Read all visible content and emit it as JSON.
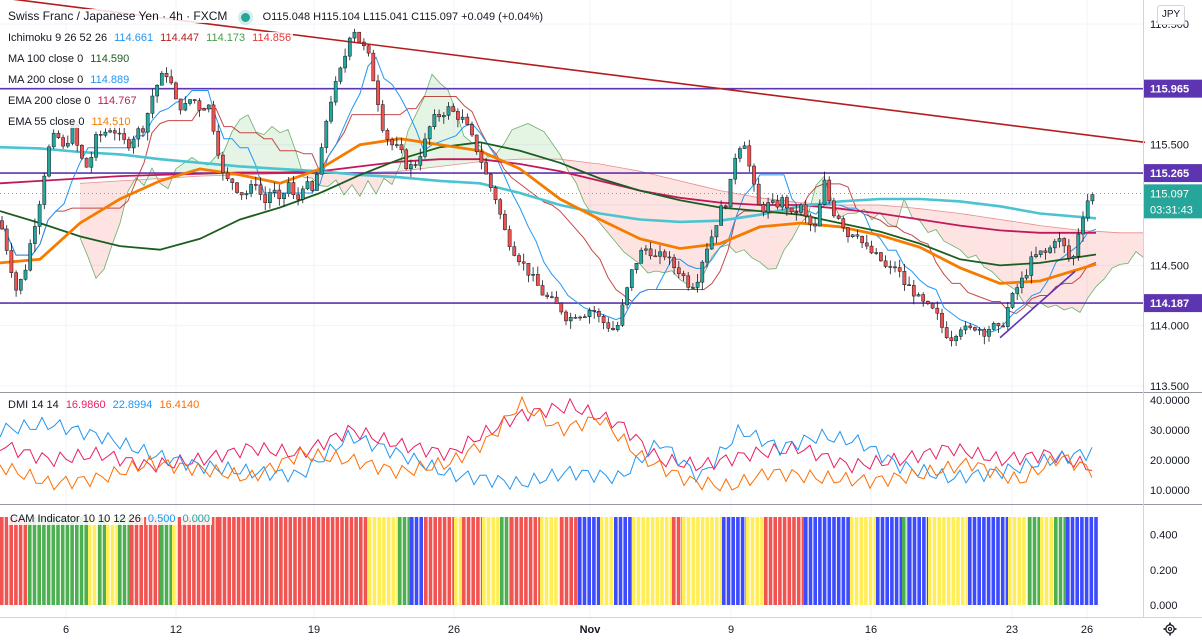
{
  "header": {
    "symbol": "Swiss Franc / Japanese Yen · 4h · FXCM",
    "ohlc": "O115.048 H115.104 L115.041 C115.097 +0.049 (+0.04%)",
    "currency": "JPY"
  },
  "indicators": [
    {
      "name": "Ichimoku 9 26 52 26",
      "values": [
        "114.661",
        "114.447",
        "114.173",
        "114.856"
      ],
      "colors": [
        "#2196f3",
        "#b71c1c",
        "#43a047",
        "#e53935"
      ]
    },
    {
      "name": "MA 100 close 0",
      "values": [
        "114.590"
      ],
      "colors": [
        "#1b5e20"
      ]
    },
    {
      "name": "MA 200 close 0",
      "values": [
        "114.889"
      ],
      "colors": [
        "#2196f3"
      ]
    },
    {
      "name": "EMA 200 close 0",
      "values": [
        "114.767"
      ],
      "colors": [
        "#c2185b"
      ]
    },
    {
      "name": "EMA 55 close 0",
      "values": [
        "114.510"
      ],
      "colors": [
        "#f57c00"
      ]
    }
  ],
  "price_axis": {
    "ticks": [
      "116.500",
      "116.000",
      "115.500",
      "115.000",
      "114.500",
      "114.000",
      "113.500"
    ],
    "ymin": 113.45,
    "ymax": 116.7,
    "hlines": [
      {
        "value": 115.965,
        "label": "115.965"
      },
      {
        "value": 115.265,
        "label": "115.265"
      },
      {
        "value": 114.187,
        "label": "114.187"
      }
    ],
    "last_price": "115.097",
    "countdown": "03:31:43"
  },
  "x_axis": {
    "labels": [
      "6",
      "12",
      "19",
      "26",
      "Nov",
      "9",
      "16",
      "23",
      "26"
    ]
  },
  "dmi": {
    "label": "DMI 14 14",
    "values": [
      "16.9860",
      "22.8994",
      "16.4140"
    ],
    "colors": [
      "#e91e63",
      "#2196f3",
      "#ff6d00"
    ],
    "ticks": [
      "40.0000",
      "30.0000",
      "20.0000",
      "10.0000"
    ]
  },
  "cam": {
    "label": "CAM Indicator 10 10 12 26",
    "values": [
      "0.500",
      "0.000"
    ],
    "colors": [
      "#2196f3",
      "#26a69a"
    ],
    "ticks": [
      "0.400",
      "0.200",
      "0.000"
    ],
    "palette": {
      "red": "#f05350",
      "green": "#4caf50",
      "yellow": "#ffee58",
      "blue": "#3d4bff"
    }
  },
  "chart_data": {
    "type": "candlestick",
    "title": "Swiss Franc / Japanese Yen · 4h · FXCM",
    "ylim": [
      113.45,
      116.7
    ],
    "close_path": [
      [
        0,
        114.87
      ],
      [
        8,
        114.6
      ],
      [
        16,
        114.3
      ],
      [
        24,
        114.42
      ],
      [
        32,
        114.75
      ],
      [
        40,
        115.05
      ],
      [
        48,
        115.45
      ],
      [
        56,
        115.6
      ],
      [
        64,
        115.45
      ],
      [
        72,
        115.65
      ],
      [
        80,
        115.4
      ],
      [
        88,
        115.3
      ],
      [
        96,
        115.55
      ],
      [
        104,
        115.6
      ],
      [
        112,
        115.65
      ],
      [
        120,
        115.55
      ],
      [
        128,
        115.5
      ],
      [
        136,
        115.6
      ],
      [
        144,
        115.65
      ],
      [
        152,
        115.9
      ],
      [
        160,
        116.05
      ],
      [
        168,
        116.1
      ],
      [
        176,
        115.85
      ],
      [
        184,
        115.8
      ],
      [
        192,
        115.9
      ],
      [
        200,
        115.8
      ],
      [
        208,
        115.85
      ],
      [
        216,
        115.55
      ],
      [
        224,
        115.2
      ],
      [
        232,
        115.2
      ],
      [
        240,
        115.1
      ],
      [
        248,
        115.1
      ],
      [
        256,
        115.2
      ],
      [
        264,
        115.0
      ],
      [
        272,
        115.15
      ],
      [
        280,
        115.0
      ],
      [
        288,
        115.2
      ],
      [
        296,
        115.0
      ],
      [
        304,
        115.2
      ],
      [
        312,
        115.1
      ],
      [
        320,
        115.35
      ],
      [
        328,
        115.8
      ],
      [
        336,
        116.0
      ],
      [
        344,
        116.2
      ],
      [
        352,
        116.5
      ],
      [
        360,
        116.35
      ],
      [
        368,
        116.25
      ],
      [
        376,
        115.95
      ],
      [
        384,
        115.6
      ],
      [
        392,
        115.5
      ],
      [
        400,
        115.45
      ],
      [
        408,
        115.3
      ],
      [
        416,
        115.35
      ],
      [
        424,
        115.5
      ],
      [
        432,
        115.7
      ],
      [
        440,
        115.75
      ],
      [
        448,
        115.8
      ],
      [
        456,
        115.75
      ],
      [
        464,
        115.7
      ],
      [
        472,
        115.55
      ],
      [
        480,
        115.4
      ],
      [
        488,
        115.2
      ],
      [
        496,
        115.05
      ],
      [
        504,
        114.8
      ],
      [
        512,
        114.65
      ],
      [
        520,
        114.55
      ],
      [
        528,
        114.45
      ],
      [
        536,
        114.35
      ],
      [
        544,
        114.25
      ],
      [
        552,
        114.2
      ],
      [
        560,
        114.15
      ],
      [
        568,
        114.05
      ],
      [
        576,
        114.1
      ],
      [
        584,
        114.1
      ],
      [
        592,
        114.15
      ],
      [
        600,
        114.05
      ],
      [
        608,
        114.0
      ],
      [
        616,
        113.95
      ],
      [
        624,
        114.2
      ],
      [
        632,
        114.45
      ],
      [
        640,
        114.6
      ],
      [
        648,
        114.65
      ],
      [
        656,
        114.55
      ],
      [
        664,
        114.6
      ],
      [
        672,
        114.5
      ],
      [
        680,
        114.45
      ],
      [
        688,
        114.35
      ],
      [
        696,
        114.35
      ],
      [
        704,
        114.6
      ],
      [
        712,
        114.75
      ],
      [
        720,
        114.95
      ],
      [
        728,
        115.05
      ],
      [
        736,
        115.45
      ],
      [
        744,
        115.55
      ],
      [
        752,
        115.2
      ],
      [
        760,
        114.95
      ],
      [
        768,
        115.0
      ],
      [
        776,
        115.0
      ],
      [
        784,
        115.05
      ],
      [
        792,
        114.9
      ],
      [
        800,
        115.0
      ],
      [
        808,
        114.85
      ],
      [
        816,
        114.8
      ],
      [
        824,
        115.2
      ],
      [
        832,
        114.95
      ],
      [
        840,
        114.9
      ],
      [
        848,
        114.75
      ],
      [
        856,
        114.8
      ],
      [
        864,
        114.65
      ],
      [
        872,
        114.6
      ],
      [
        880,
        114.55
      ],
      [
        888,
        114.45
      ],
      [
        896,
        114.5
      ],
      [
        904,
        114.35
      ],
      [
        912,
        114.3
      ],
      [
        920,
        114.2
      ],
      [
        928,
        114.15
      ],
      [
        936,
        114.1
      ],
      [
        944,
        113.95
      ],
      [
        952,
        113.9
      ],
      [
        960,
        114.0
      ],
      [
        968,
        113.95
      ],
      [
        976,
        114.0
      ],
      [
        984,
        113.95
      ],
      [
        992,
        114.0
      ],
      [
        1000,
        113.95
      ],
      [
        1008,
        114.15
      ],
      [
        1016,
        114.3
      ],
      [
        1024,
        114.4
      ],
      [
        1032,
        114.55
      ],
      [
        1040,
        114.6
      ],
      [
        1048,
        114.6
      ],
      [
        1056,
        114.75
      ],
      [
        1064,
        114.65
      ],
      [
        1072,
        114.5
      ],
      [
        1080,
        114.85
      ],
      [
        1088,
        115.05
      ],
      [
        1096,
        115.1
      ]
    ],
    "ema55_path": [
      [
        0,
        114.52
      ],
      [
        40,
        114.55
      ],
      [
        80,
        114.85
      ],
      [
        120,
        115.05
      ],
      [
        160,
        115.2
      ],
      [
        200,
        115.3
      ],
      [
        240,
        115.25
      ],
      [
        280,
        115.18
      ],
      [
        320,
        115.3
      ],
      [
        360,
        115.5
      ],
      [
        400,
        115.55
      ],
      [
        440,
        115.5
      ],
      [
        480,
        115.45
      ],
      [
        520,
        115.3
      ],
      [
        560,
        115.05
      ],
      [
        600,
        114.88
      ],
      [
        640,
        114.72
      ],
      [
        680,
        114.64
      ],
      [
        720,
        114.68
      ],
      [
        760,
        114.82
      ],
      [
        800,
        114.85
      ],
      [
        840,
        114.82
      ],
      [
        880,
        114.75
      ],
      [
        920,
        114.65
      ],
      [
        960,
        114.48
      ],
      [
        1000,
        114.35
      ],
      [
        1040,
        114.37
      ],
      [
        1096,
        114.51
      ]
    ],
    "ma100_path": [
      [
        0,
        114.95
      ],
      [
        40,
        114.85
      ],
      [
        80,
        114.74
      ],
      [
        120,
        114.66
      ],
      [
        160,
        114.63
      ],
      [
        200,
        114.72
      ],
      [
        240,
        114.88
      ],
      [
        280,
        114.98
      ],
      [
        320,
        115.1
      ],
      [
        360,
        115.25
      ],
      [
        400,
        115.38
      ],
      [
        440,
        115.48
      ],
      [
        480,
        115.52
      ],
      [
        520,
        115.45
      ],
      [
        560,
        115.35
      ],
      [
        600,
        115.22
      ],
      [
        640,
        115.12
      ],
      [
        680,
        115.04
      ],
      [
        720,
        114.98
      ],
      [
        760,
        114.95
      ],
      [
        800,
        114.92
      ],
      [
        840,
        114.85
      ],
      [
        880,
        114.78
      ],
      [
        920,
        114.68
      ],
      [
        960,
        114.55
      ],
      [
        1000,
        114.5
      ],
      [
        1040,
        114.52
      ],
      [
        1096,
        114.59
      ]
    ],
    "ma200_path": [
      [
        0,
        115.48
      ],
      [
        40,
        115.47
      ],
      [
        80,
        115.44
      ],
      [
        120,
        115.42
      ],
      [
        160,
        115.38
      ],
      [
        200,
        115.35
      ],
      [
        240,
        115.32
      ],
      [
        280,
        115.3
      ],
      [
        320,
        115.28
      ],
      [
        360,
        115.25
      ],
      [
        400,
        115.23
      ],
      [
        440,
        115.2
      ],
      [
        480,
        115.18
      ],
      [
        520,
        115.1
      ],
      [
        560,
        115.0
      ],
      [
        600,
        114.93
      ],
      [
        640,
        114.88
      ],
      [
        680,
        114.86
      ],
      [
        720,
        114.87
      ],
      [
        760,
        114.92
      ],
      [
        800,
        114.99
      ],
      [
        840,
        115.03
      ],
      [
        880,
        115.05
      ],
      [
        920,
        115.05
      ],
      [
        960,
        115.03
      ],
      [
        1000,
        114.99
      ],
      [
        1040,
        114.93
      ],
      [
        1096,
        114.89
      ]
    ],
    "ema200_path": [
      [
        0,
        115.18
      ],
      [
        40,
        115.2
      ],
      [
        80,
        115.22
      ],
      [
        120,
        115.24
      ],
      [
        160,
        115.25
      ],
      [
        200,
        115.26
      ],
      [
        240,
        115.27
      ],
      [
        280,
        115.27
      ],
      [
        320,
        115.28
      ],
      [
        360,
        115.32
      ],
      [
        400,
        115.36
      ],
      [
        440,
        115.38
      ],
      [
        480,
        115.38
      ],
      [
        520,
        115.34
      ],
      [
        560,
        115.28
      ],
      [
        600,
        115.2
      ],
      [
        640,
        115.12
      ],
      [
        680,
        115.06
      ],
      [
        720,
        115.02
      ],
      [
        760,
        115.0
      ],
      [
        800,
        115.0
      ],
      [
        840,
        114.97
      ],
      [
        880,
        114.93
      ],
      [
        920,
        114.88
      ],
      [
        960,
        114.83
      ],
      [
        1000,
        114.79
      ],
      [
        1040,
        114.77
      ],
      [
        1096,
        114.77
      ]
    ],
    "trendline": {
      "from": [
        0,
        116.72
      ],
      "to": [
        1145,
        115.52
      ]
    },
    "support_trend": {
      "from": [
        1000,
        113.9
      ],
      "to": [
        1075,
        114.45
      ]
    },
    "dmi_series": [
      {
        "name": "plus",
        "points": [
          [
            0,
            25
          ],
          [
            50,
            20
          ],
          [
            100,
            22
          ],
          [
            150,
            18
          ],
          [
            200,
            20
          ],
          [
            250,
            24
          ],
          [
            300,
            22
          ],
          [
            350,
            30
          ],
          [
            400,
            25
          ],
          [
            450,
            22
          ],
          [
            480,
            28
          ],
          [
            520,
            35
          ],
          [
            570,
            38
          ],
          [
            620,
            32
          ],
          [
            660,
            20
          ],
          [
            700,
            18
          ],
          [
            750,
            22
          ],
          [
            800,
            24
          ],
          [
            850,
            18
          ],
          [
            900,
            20
          ],
          [
            950,
            24
          ],
          [
            1000,
            20
          ],
          [
            1050,
            22
          ],
          [
            1096,
            17
          ]
        ]
      },
      {
        "name": "minus",
        "points": [
          [
            0,
            30
          ],
          [
            50,
            32
          ],
          [
            100,
            28
          ],
          [
            150,
            22
          ],
          [
            200,
            18
          ],
          [
            250,
            16
          ],
          [
            300,
            15
          ],
          [
            350,
            28
          ],
          [
            400,
            22
          ],
          [
            450,
            15
          ],
          [
            480,
            14
          ],
          [
            520,
            12
          ],
          [
            570,
            16
          ],
          [
            620,
            14
          ],
          [
            660,
            26
          ],
          [
            700,
            14
          ],
          [
            740,
            30
          ],
          [
            780,
            24
          ],
          [
            820,
            28
          ],
          [
            860,
            26
          ],
          [
            900,
            18
          ],
          [
            950,
            14
          ],
          [
            1000,
            16
          ],
          [
            1050,
            20
          ],
          [
            1096,
            23
          ]
        ]
      },
      {
        "name": "adx",
        "points": [
          [
            0,
            18
          ],
          [
            50,
            12
          ],
          [
            100,
            14
          ],
          [
            150,
            19
          ],
          [
            200,
            17
          ],
          [
            250,
            14
          ],
          [
            300,
            22
          ],
          [
            350,
            20
          ],
          [
            400,
            16
          ],
          [
            450,
            19
          ],
          [
            490,
            27
          ],
          [
            520,
            39
          ],
          [
            560,
            30
          ],
          [
            600,
            34
          ],
          [
            640,
            21
          ],
          [
            690,
            13
          ],
          [
            730,
            11
          ],
          [
            770,
            16
          ],
          [
            820,
            14
          ],
          [
            870,
            13
          ],
          [
            920,
            15
          ],
          [
            970,
            19
          ],
          [
            1020,
            13
          ],
          [
            1060,
            21
          ],
          [
            1096,
            16
          ]
        ]
      }
    ]
  }
}
